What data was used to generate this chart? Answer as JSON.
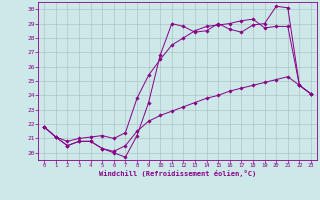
{
  "xlabel": "Windchill (Refroidissement éolien,°C)",
  "bg_color": "#cce8e8",
  "line_color": "#880088",
  "xlim": [
    -0.5,
    23.5
  ],
  "ylim": [
    19.5,
    30.5
  ],
  "yticks": [
    20,
    21,
    22,
    23,
    24,
    25,
    26,
    27,
    28,
    29,
    30
  ],
  "xticks": [
    0,
    1,
    2,
    3,
    4,
    5,
    6,
    7,
    8,
    9,
    10,
    11,
    12,
    13,
    14,
    15,
    16,
    17,
    18,
    19,
    20,
    21,
    22,
    23
  ],
  "series1_x": [
    0,
    1,
    2,
    3,
    4,
    5,
    6,
    7,
    8,
    9,
    10,
    11,
    12,
    13,
    14,
    15,
    16,
    17,
    18,
    19,
    20,
    21,
    22,
    23
  ],
  "series1_y": [
    21.8,
    21.1,
    20.5,
    20.8,
    20.8,
    20.3,
    20.0,
    19.7,
    21.2,
    23.5,
    26.8,
    29.0,
    28.8,
    28.4,
    28.5,
    29.0,
    28.6,
    28.4,
    28.9,
    29.0,
    30.2,
    30.1,
    24.7,
    24.1
  ],
  "series2_x": [
    0,
    1,
    2,
    3,
    4,
    5,
    6,
    7,
    8,
    9,
    10,
    11,
    12,
    13,
    14,
    15,
    16,
    17,
    18,
    19,
    20,
    21,
    22,
    23
  ],
  "series2_y": [
    21.8,
    21.1,
    20.8,
    21.0,
    21.1,
    21.2,
    21.0,
    21.4,
    23.8,
    25.4,
    26.5,
    27.5,
    28.0,
    28.5,
    28.8,
    28.9,
    29.0,
    29.2,
    29.3,
    28.7,
    28.8,
    28.8,
    24.7,
    24.1
  ],
  "series3_x": [
    0,
    1,
    2,
    3,
    4,
    5,
    6,
    7,
    8,
    9,
    10,
    11,
    12,
    13,
    14,
    15,
    16,
    17,
    18,
    19,
    20,
    21,
    22,
    23
  ],
  "series3_y": [
    21.8,
    21.1,
    20.5,
    20.8,
    20.8,
    20.3,
    20.1,
    20.5,
    21.5,
    22.2,
    22.6,
    22.9,
    23.2,
    23.5,
    23.8,
    24.0,
    24.3,
    24.5,
    24.7,
    24.9,
    25.1,
    25.3,
    24.7,
    24.1
  ],
  "grid_color": "#aabbbb",
  "marker": "D",
  "markersize": 1.8,
  "linewidth": 0.7
}
